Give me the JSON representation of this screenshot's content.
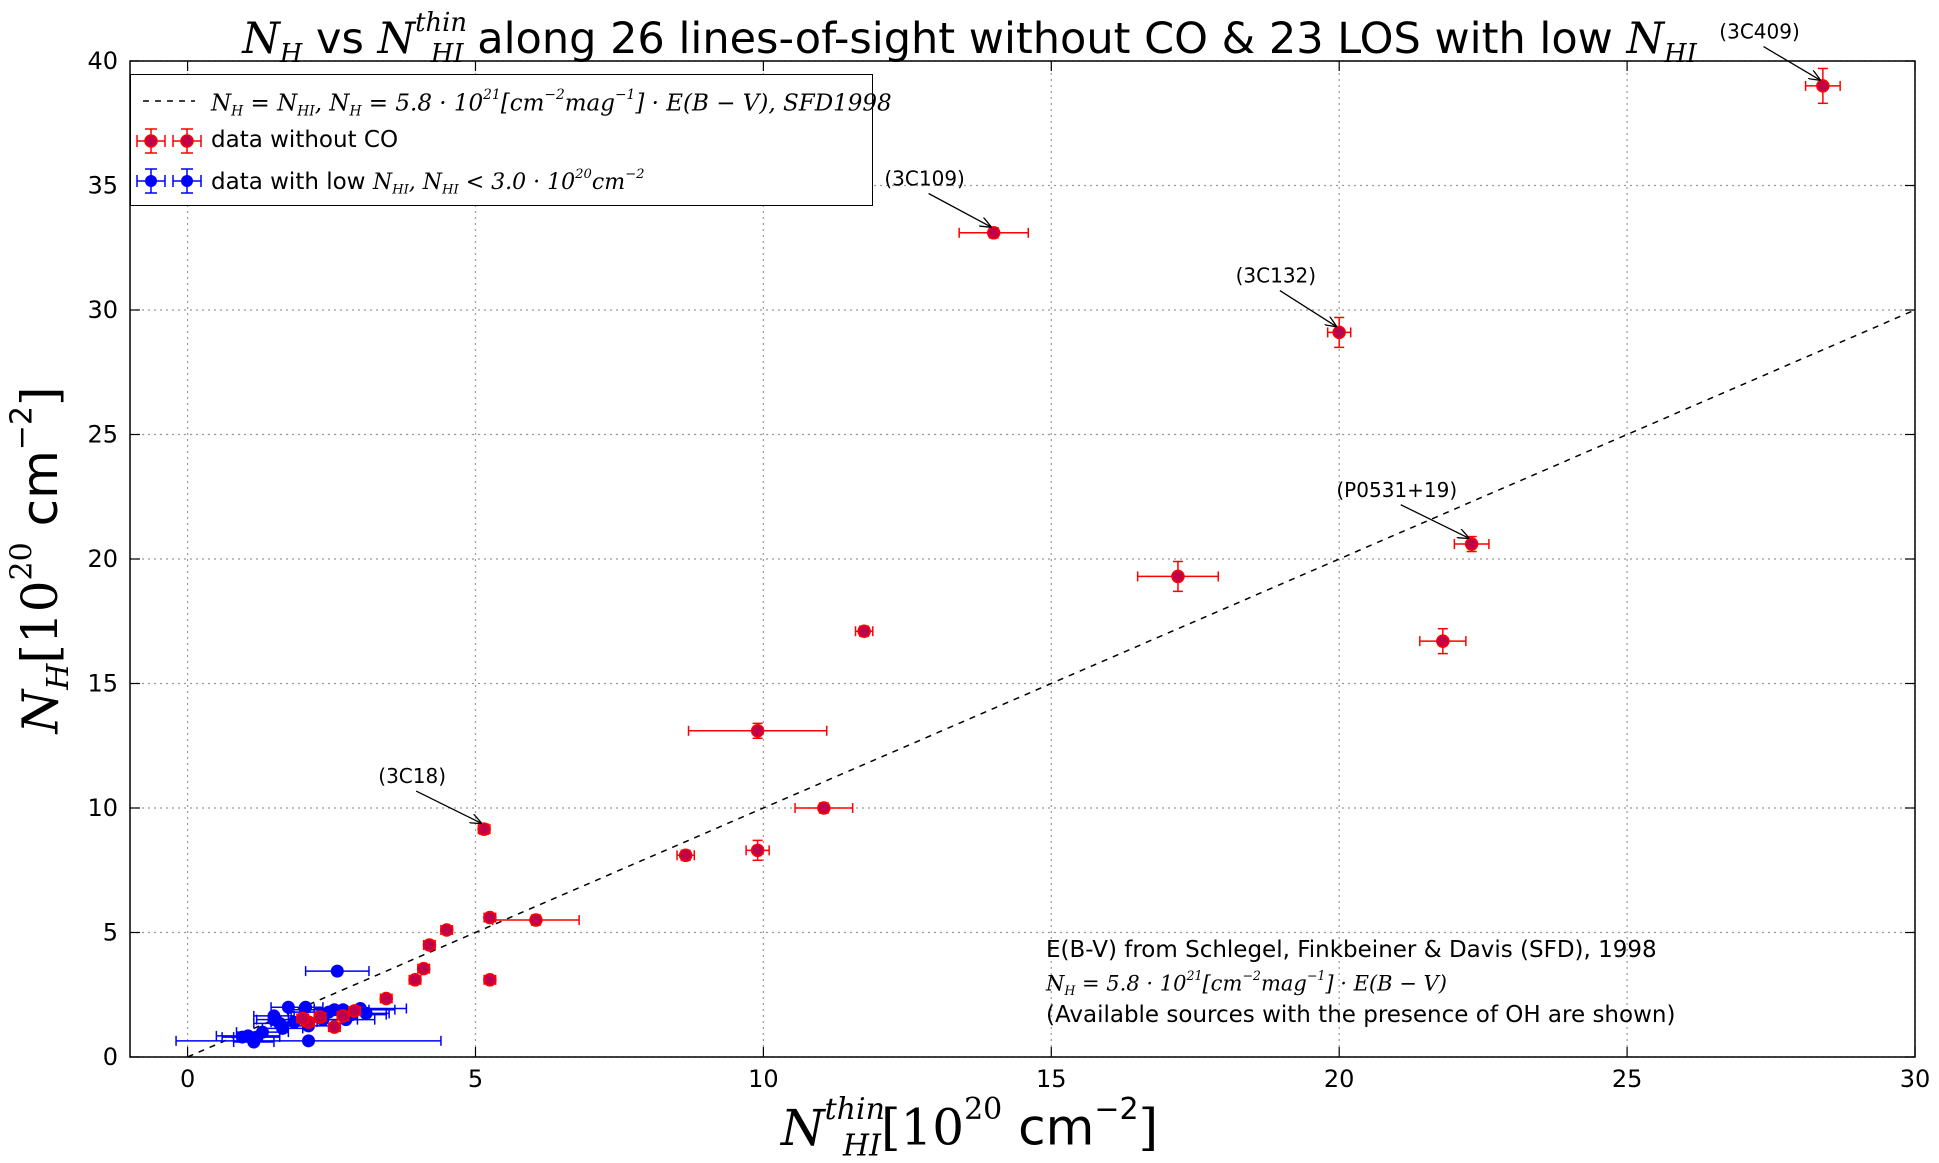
{
  "chart_data": {
    "type": "scatter",
    "title": {
      "NH": "N",
      "NH_sub": "H",
      "vs": " vs ",
      "NHI": "N",
      "NHI_sup": "thin",
      "NHI_sub": "HI",
      "middle": " along 26 lines-of-sight without CO & 23 LOS with low ",
      "end_sym": "N",
      "end_sub": "HI"
    },
    "xlabel": {
      "sym": "N",
      "sup": "thin",
      "sub": "HI",
      "pre": "[10",
      "exp": "20",
      "unit": " cm",
      "unit_exp": "−2",
      "post": "]"
    },
    "ylabel": {
      "sym": "N",
      "sub": "H",
      "pre": "[10",
      "exp": "20",
      "unit": " cm",
      "unit_exp": "−2",
      "post": "]"
    },
    "xlim": [
      -1,
      30
    ],
    "ylim": [
      0,
      40
    ],
    "xticks": [
      0,
      5,
      10,
      15,
      20,
      25,
      30
    ],
    "yticks": [
      0,
      5,
      10,
      15,
      20,
      25,
      30,
      35,
      40
    ],
    "grid": true,
    "legend_position": "top-left",
    "colors": {
      "red": "#ff0000",
      "blue": "#0000ff",
      "marker_fill": "#c0004a",
      "line": "#000000"
    },
    "legend": {
      "line_text": "N_H = N_HI, N_H = 5.8·10^21 [cm^-2 mag^-1]·E(B−V), SFD1998",
      "line_label": {
        "a": "N",
        "a_sub": "H",
        "b": " = N",
        "b_sub": "HI",
        "c": ", N",
        "c_sub": "H",
        "d": " = 5.8 · 10",
        "d_sup": "21",
        "e": "[cm",
        "e_sup": "−2",
        "f": "mag",
        "f_sup": "−1",
        "g": "] · E(B − V), SFD1998"
      },
      "red_label": "data without CO",
      "blue_label": {
        "a": "data with low ",
        "b": "N",
        "b_sub": "HI",
        "c": ", N",
        "c_sub": "HI",
        "d": " < 3.0 · 10",
        "d_sup": "20",
        "e": "cm",
        "e_sup": "−2"
      }
    },
    "reference_line": {
      "x": [
        0,
        30
      ],
      "y": [
        0,
        30
      ]
    },
    "series": [
      {
        "name": "data without CO",
        "color": "#ff0000",
        "points": [
          {
            "x": 28.4,
            "y": 39.0,
            "xerr": 0.3,
            "yerr": 0.7
          },
          {
            "x": 14.0,
            "y": 33.1,
            "xerr": 0.6,
            "yerr": 0.2
          },
          {
            "x": 20.0,
            "y": 29.1,
            "xerr": 0.2,
            "yerr": 0.6
          },
          {
            "x": 22.3,
            "y": 20.6,
            "xerr": 0.3,
            "yerr": 0.3
          },
          {
            "x": 17.2,
            "y": 19.3,
            "xerr": 0.7,
            "yerr": 0.6
          },
          {
            "x": 21.8,
            "y": 16.7,
            "xerr": 0.4,
            "yerr": 0.5
          },
          {
            "x": 11.75,
            "y": 17.1,
            "xerr": 0.15,
            "yerr": 0.2
          },
          {
            "x": 9.9,
            "y": 13.1,
            "xerr": 1.2,
            "yerr": 0.3
          },
          {
            "x": 11.05,
            "y": 10.0,
            "xerr": 0.5,
            "yerr": 0.2
          },
          {
            "x": 8.65,
            "y": 8.1,
            "xerr": 0.15,
            "yerr": 0.2
          },
          {
            "x": 9.9,
            "y": 8.3,
            "xerr": 0.2,
            "yerr": 0.4
          },
          {
            "x": 5.15,
            "y": 9.15,
            "xerr": 0.1,
            "yerr": 0.2
          },
          {
            "x": 6.05,
            "y": 5.5,
            "xerr": 0.75,
            "yerr": 0.2
          },
          {
            "x": 5.25,
            "y": 5.6,
            "xerr": 0.1,
            "yerr": 0.15
          },
          {
            "x": 5.25,
            "y": 3.1,
            "xerr": 0.1,
            "yerr": 0.15
          },
          {
            "x": 4.5,
            "y": 5.1,
            "xerr": 0.1,
            "yerr": 0.15
          },
          {
            "x": 4.2,
            "y": 4.5,
            "xerr": 0.1,
            "yerr": 0.15
          },
          {
            "x": 4.1,
            "y": 3.55,
            "xerr": 0.1,
            "yerr": 0.15
          },
          {
            "x": 3.95,
            "y": 3.1,
            "xerr": 0.1,
            "yerr": 0.15
          },
          {
            "x": 3.45,
            "y": 2.35,
            "xerr": 0.1,
            "yerr": 0.15
          },
          {
            "x": 2.55,
            "y": 1.2,
            "xerr": 0.1,
            "yerr": 0.15
          },
          {
            "x": 2.1,
            "y": 1.4,
            "xerr": 0.1,
            "yerr": 0.15
          },
          {
            "x": 2.9,
            "y": 1.85,
            "xerr": 0.1,
            "yerr": 0.15
          },
          {
            "x": 2.3,
            "y": 1.6,
            "xerr": 0.1,
            "yerr": 0.15
          },
          {
            "x": 2.7,
            "y": 1.65,
            "xerr": 0.1,
            "yerr": 0.15
          },
          {
            "x": 2.0,
            "y": 1.55,
            "xerr": 0.1,
            "yerr": 0.15
          }
        ]
      },
      {
        "name": "data with low N_HI, N_HI < 3.0·10^20 cm^-2",
        "color": "#0000ff",
        "points": [
          {
            "x": 2.6,
            "y": 3.45,
            "xerr": 0.55,
            "yerr": 0.1
          },
          {
            "x": 1.75,
            "y": 2.0,
            "xerr": 0.3,
            "yerr": 0.1
          },
          {
            "x": 2.05,
            "y": 2.0,
            "xerr": 0.3,
            "yerr": 0.1
          },
          {
            "x": 1.5,
            "y": 1.65,
            "xerr": 0.35,
            "yerr": 0.1
          },
          {
            "x": 2.45,
            "y": 1.8,
            "xerr": 0.7,
            "yerr": 0.1
          },
          {
            "x": 2.55,
            "y": 1.9,
            "xerr": 0.6,
            "yerr": 0.1
          },
          {
            "x": 2.7,
            "y": 1.9,
            "xerr": 0.9,
            "yerr": 0.1
          },
          {
            "x": 2.85,
            "y": 1.7,
            "xerr": 0.6,
            "yerr": 0.1
          },
          {
            "x": 3.0,
            "y": 1.95,
            "xerr": 0.8,
            "yerr": 0.1
          },
          {
            "x": 2.35,
            "y": 1.5,
            "xerr": 0.6,
            "yerr": 0.1
          },
          {
            "x": 2.75,
            "y": 1.5,
            "xerr": 0.5,
            "yerr": 0.1
          },
          {
            "x": 1.6,
            "y": 1.35,
            "xerr": 0.45,
            "yerr": 0.1
          },
          {
            "x": 1.65,
            "y": 1.15,
            "xerr": 0.35,
            "yerr": 0.1
          },
          {
            "x": 2.1,
            "y": 1.25,
            "xerr": 0.4,
            "yerr": 0.1
          },
          {
            "x": 1.3,
            "y": 1.0,
            "xerr": 0.45,
            "yerr": 0.1
          },
          {
            "x": 1.05,
            "y": 0.85,
            "xerr": 0.55,
            "yerr": 0.1
          },
          {
            "x": 0.95,
            "y": 0.8,
            "xerr": 0.35,
            "yerr": 0.1
          },
          {
            "x": 1.2,
            "y": 0.8,
            "xerr": 0.4,
            "yerr": 0.1
          },
          {
            "x": 1.15,
            "y": 0.6,
            "xerr": 0.35,
            "yerr": 0.1
          },
          {
            "x": 2.1,
            "y": 0.65,
            "xerr": 2.3,
            "yerr": 0.1
          },
          {
            "x": 1.5,
            "y": 1.5,
            "xerr": 0.3,
            "yerr": 0.1
          },
          {
            "x": 1.85,
            "y": 1.4,
            "xerr": 0.4,
            "yerr": 0.1
          },
          {
            "x": 3.1,
            "y": 1.75,
            "xerr": 0.4,
            "yerr": 0.1
          }
        ]
      }
    ],
    "annotations": [
      {
        "text": "(3C409)",
        "x": 28.4,
        "y": 39.0,
        "tx": 27.3,
        "ty": 40.9
      },
      {
        "text": "(3C109)",
        "x": 14.0,
        "y": 33.1,
        "tx": 12.8,
        "ty": 35.0
      },
      {
        "text": "(3C132)",
        "x": 20.0,
        "y": 29.1,
        "tx": 18.9,
        "ty": 31.1
      },
      {
        "text": "(P0531+19)",
        "x": 22.3,
        "y": 20.6,
        "tx": 21.0,
        "ty": 22.5
      },
      {
        "text": "(3C18)",
        "x": 5.15,
        "y": 9.15,
        "tx": 3.9,
        "ty": 11.0
      }
    ],
    "note": {
      "line1": "E(B-V) from Schlegel, Finkbeiner & Davis (SFD), 1998",
      "line2": {
        "a": "N",
        "a_sub": "H",
        "b": " = 5.8 · 10",
        "b_sup": "21",
        "c": "[cm",
        "c_sup": "−2",
        "d": "mag",
        "d_sup": "−1",
        "e": "] · E(B − V)"
      },
      "line3": "(Available sources with the presence of OH are shown)"
    }
  }
}
